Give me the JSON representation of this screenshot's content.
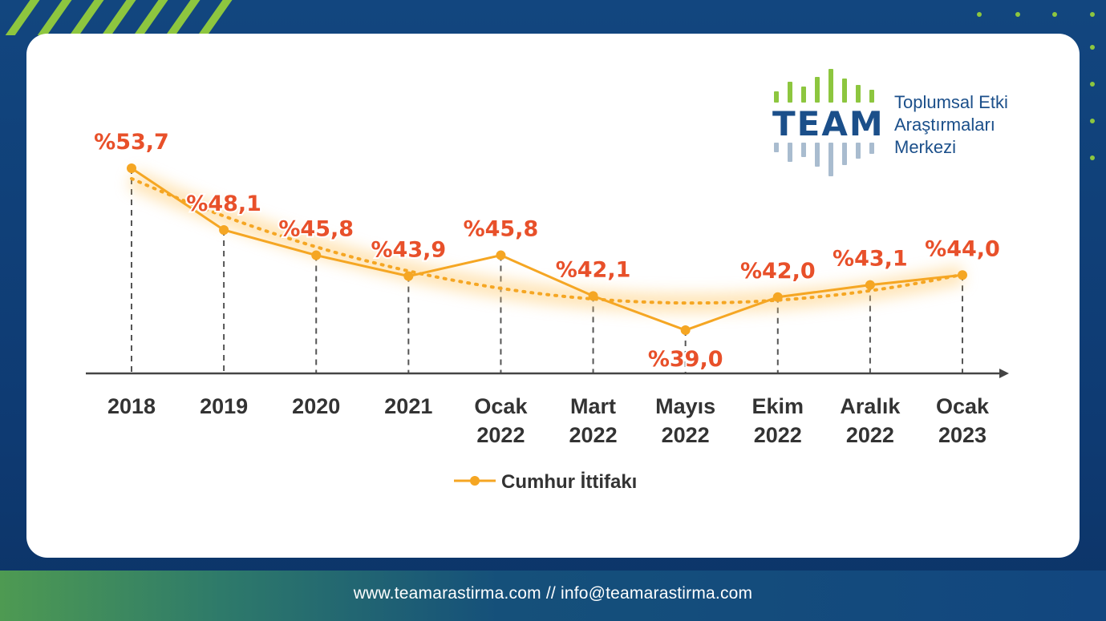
{
  "footer": {
    "text": "www.teamarastirma.com // info@teamarastirma.com"
  },
  "logo": {
    "word": "TEAM",
    "line1": "Toplumsal Etki",
    "line2": "Araştırmaları",
    "line3": "Merkezi"
  },
  "colors": {
    "series_line": "#f5a623",
    "value_labels": "#e8502a",
    "axis": "#444444",
    "brand_blue": "#1b4f8a",
    "brand_green": "#8dc63f",
    "logo_grey": "#a9bccf"
  },
  "chart_data": {
    "type": "line",
    "categories": [
      [
        "2018"
      ],
      [
        "2019"
      ],
      [
        "2020"
      ],
      [
        "2021"
      ],
      [
        "Ocak",
        "2022"
      ],
      [
        "Mart",
        "2022"
      ],
      [
        "Mayıs",
        "2022"
      ],
      [
        "Ekim",
        "2022"
      ],
      [
        "Aralık",
        "2022"
      ],
      [
        "Ocak",
        "2023"
      ]
    ],
    "series": [
      {
        "name": "Cumhur İttifakı",
        "values": [
          53.7,
          48.1,
          45.8,
          43.9,
          45.8,
          42.1,
          39.0,
          42.0,
          43.1,
          44.0
        ]
      }
    ],
    "value_labels": [
      "%53,7",
      "%48,1",
      "%45,8",
      "%43,9",
      "%45,8",
      "%42,1",
      "%39,0",
      "%42,0",
      "%43,1",
      "%44,0"
    ],
    "trendline": "dotted",
    "title": "",
    "xlabel": "",
    "ylabel": "",
    "legend": {
      "position": "bottom",
      "label": "Cumhur İttifakı"
    },
    "grid": false,
    "drop_lines": true
  }
}
